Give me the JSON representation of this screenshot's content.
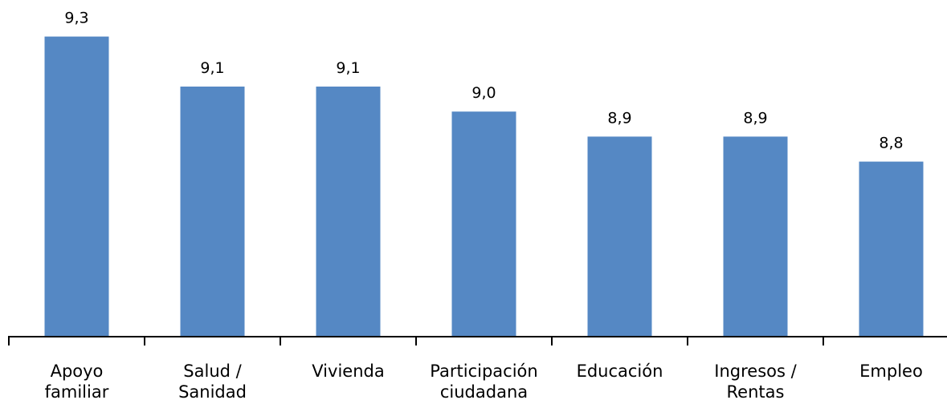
{
  "chart_data": {
    "type": "bar",
    "categories": [
      [
        "Apoyo",
        "familiar"
      ],
      [
        "Salud /",
        "Sanidad"
      ],
      [
        "Vivienda"
      ],
      [
        "Participación",
        "ciudadana"
      ],
      [
        "Educación"
      ],
      [
        "Ingresos /",
        "Rentas"
      ],
      [
        "Empleo"
      ]
    ],
    "values": [
      9.3,
      9.1,
      9.1,
      9.0,
      8.9,
      8.9,
      8.8
    ],
    "value_labels": [
      "9,3",
      "9,1",
      "9,1",
      "9,0",
      "8,9",
      "8,9",
      "8,8"
    ],
    "ylim": [
      8.1,
      9.35
    ],
    "grid": false,
    "legend": "none",
    "colors": {
      "bar": "#5588C4",
      "axis": "#000000"
    }
  }
}
